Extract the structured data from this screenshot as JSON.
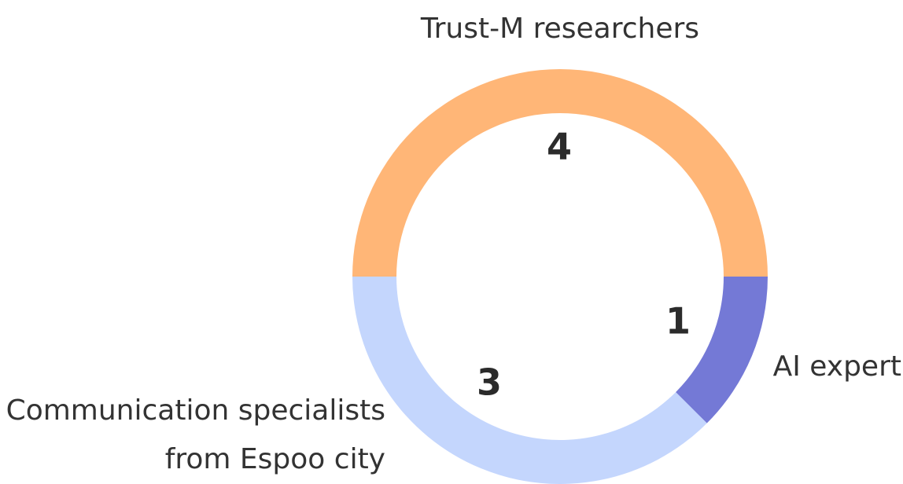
{
  "chart_data": {
    "type": "pie",
    "donut": true,
    "title": "",
    "slices": [
      {
        "label": "Trust-M researchers",
        "value": 4,
        "color": "#FFB677"
      },
      {
        "label": "AI expert",
        "value": 1,
        "color": "#7479D6"
      },
      {
        "label": "Communication specialists from Espoo city",
        "label_lines": [
          "Communication specialists",
          "from Espoo city"
        ],
        "value": 3,
        "color": "#C4D6FD"
      }
    ],
    "legend": "none"
  }
}
